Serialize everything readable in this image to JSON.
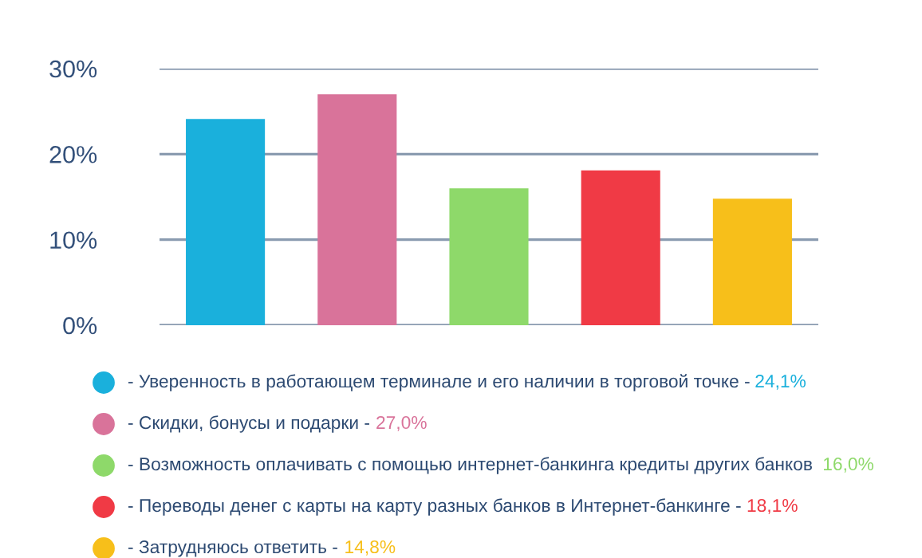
{
  "chart_data": {
    "type": "bar",
    "categories": [
      null,
      null,
      null,
      null,
      null
    ],
    "series": [
      {
        "name": "- Уверенность в работающем терминале и его наличии в торговой точке -",
        "color": "#1ab0dc",
        "values": [
          24.1,
          null,
          null,
          null,
          null
        ]
      },
      {
        "name": "- Скидки, бонусы и подарки -",
        "color": "#d9739a",
        "values": [
          null,
          27.0,
          null,
          null,
          null
        ]
      },
      {
        "name": "- Возможность оплачивать с помощью интернет-банкинга кредиты других банков ",
        "color": "#8ed96a",
        "values": [
          null,
          null,
          16.0,
          null,
          null
        ]
      },
      {
        "name": "- Переводы денег с карты на карту разных банков в Интернет-банкинге -",
        "color": "#f03a45",
        "values": [
          null,
          null,
          null,
          18.1,
          null
        ]
      },
      {
        "name": "- Затрудняюсь ответить -",
        "color": "#f7bf1a",
        "values": [
          null,
          null,
          null,
          null,
          14.8
        ]
      }
    ],
    "annotations": [
      "24,1%",
      "27,0%",
      "16,0%",
      "18,1%",
      "14,8%"
    ],
    "ylim": [
      0,
      30
    ],
    "yticks": [
      {
        "value": 0,
        "label": "0%"
      },
      {
        "value": 10,
        "label": "10%"
      },
      {
        "value": 20,
        "label": "20%"
      },
      {
        "value": 30,
        "label": "30%"
      }
    ],
    "grid": "y",
    "legend": "bottom"
  }
}
